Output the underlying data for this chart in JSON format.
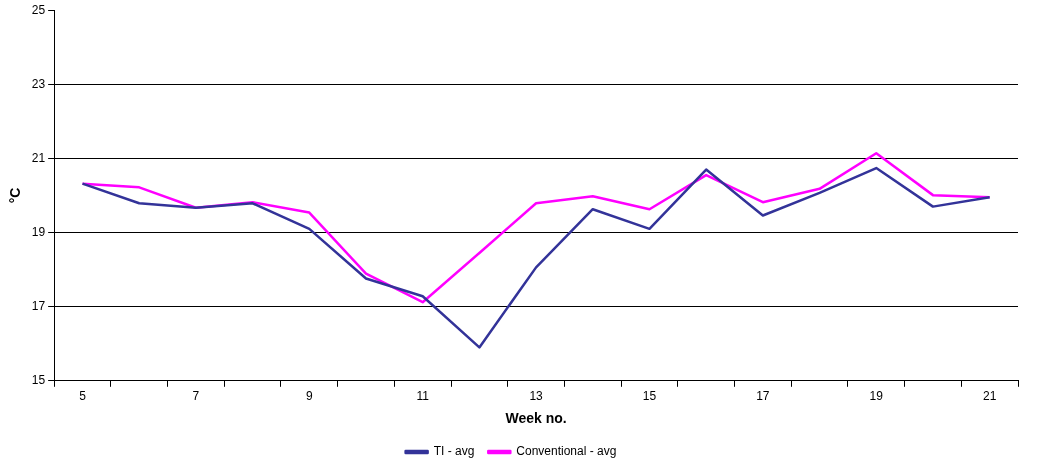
{
  "chart_data": {
    "type": "line",
    "xlabel": "Week no.",
    "ylabel": "°C",
    "categories": [
      "5",
      null,
      "7",
      null,
      "9",
      null,
      "11",
      null,
      "13",
      null,
      "15",
      null,
      "17",
      null,
      "19",
      null,
      "21"
    ],
    "series": [
      {
        "name": "TI - avg",
        "color": "#333399",
        "values": [
          20.32,
          19.79,
          19.67,
          19.79,
          19.1,
          17.76,
          17.28,
          15.9,
          18.06,
          19.63,
          19.1,
          20.7,
          19.46,
          20.07,
          20.74,
          19.7,
          19.95
        ]
      },
      {
        "name": "Conventional - avg",
        "color": "#ff00ff",
        "values": [
          20.32,
          20.22,
          19.67,
          19.82,
          19.54,
          17.89,
          17.12,
          18.45,
          19.79,
          19.98,
          19.63,
          20.55,
          19.82,
          20.18,
          21.14,
          20.01,
          19.95
        ]
      }
    ],
    "ylim": [
      15,
      25
    ],
    "yticks": [
      15,
      17,
      19,
      21,
      23,
      25
    ],
    "grid": "y",
    "legend": "bottom",
    "marker": "none",
    "line_style": "solid"
  }
}
